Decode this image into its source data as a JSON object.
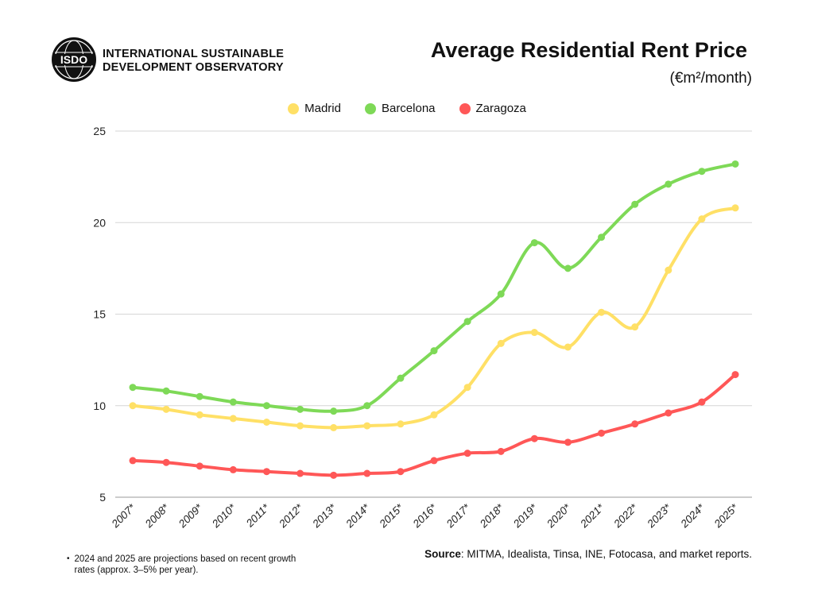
{
  "header": {
    "org_line1": "INTERNATIONAL SUSTAINABLE",
    "org_line2": "DEVELOPMENT OBSERVATORY",
    "logo_text": "ISDO",
    "title": "Average Residential Rent Price",
    "subtitle": "(€m²/month)"
  },
  "footer": {
    "note": "2024 and 2025 are projections based on recent growth rates (approx. 3–5% per year).",
    "source_label": "Source",
    "source_text": ":  MITMA, Idealista, Tinsa, INE, Fotocasa, and market reports."
  },
  "chart_data": {
    "type": "line",
    "title": "Average Residential Rent Price",
    "ylabel": "(€m²/month)",
    "ylim": [
      5,
      25
    ],
    "yticks": [
      5,
      10,
      15,
      20,
      25
    ],
    "grid": true,
    "legend_position": "top-center",
    "categories": [
      "2007*",
      "2008*",
      "2009*",
      "2010*",
      "2011*",
      "2012*",
      "2013*",
      "2014*",
      "2015*",
      "2016*",
      "2017*",
      "2018*",
      "2019*",
      "2020*",
      "2021*",
      "2022*",
      "2023*",
      "2024*",
      "2025*"
    ],
    "series": [
      {
        "name": "Madrid",
        "color": "#FFE066",
        "values": [
          10.0,
          9.8,
          9.5,
          9.3,
          9.1,
          8.9,
          8.8,
          8.9,
          9.0,
          9.5,
          11.0,
          13.4,
          14.0,
          13.2,
          15.1,
          14.3,
          17.4,
          20.2,
          20.8
        ]
      },
      {
        "name": "Barcelona",
        "color": "#7ED957",
        "values": [
          11.0,
          10.8,
          10.5,
          10.2,
          10.0,
          9.8,
          9.7,
          10.0,
          11.5,
          13.0,
          14.6,
          16.1,
          18.9,
          17.5,
          19.2,
          21.0,
          22.1,
          22.8,
          23.2
        ]
      },
      {
        "name": "Zaragoza",
        "color": "#FF5757",
        "values": [
          7.0,
          6.9,
          6.7,
          6.5,
          6.4,
          6.3,
          6.2,
          6.3,
          6.4,
          7.0,
          7.4,
          7.5,
          8.2,
          8.0,
          8.5,
          9.0,
          9.6,
          10.2,
          11.7
        ]
      }
    ]
  }
}
